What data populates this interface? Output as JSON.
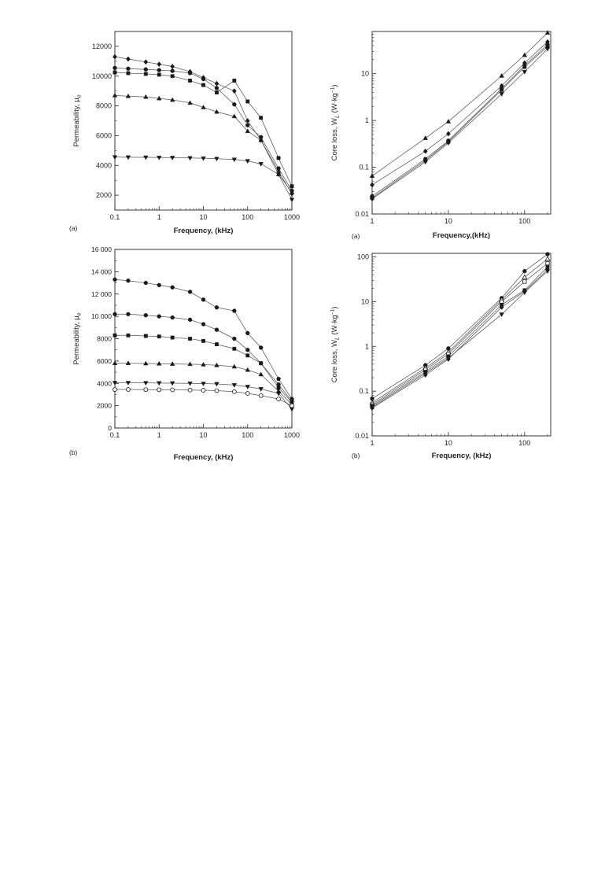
{
  "chart_data": [
    {
      "id": "perm-a",
      "type": "line",
      "panel_label": "(a)",
      "xlabel": "Frequency, (kHz)",
      "ylabel_main": "Permeability, μ",
      "ylabel_sub": "e",
      "xscale": "log",
      "xlim": [
        0.1,
        1000
      ],
      "ylim": [
        1000,
        13000
      ],
      "x_ticks": [
        0.1,
        1,
        10,
        100,
        1000
      ],
      "x_tick_labels": [
        "0.1",
        "1",
        "10",
        "100",
        "1000"
      ],
      "y_ticks": [
        2000,
        4000,
        6000,
        8000,
        10000,
        12000
      ],
      "y_tick_labels": [
        "2000",
        "4000",
        "6000",
        "8000",
        "10000",
        "12000"
      ],
      "grid": false,
      "series": [
        {
          "marker": "diamond",
          "x": [
            0.1,
            0.2,
            0.5,
            1,
            2,
            5,
            10,
            20,
            50,
            100,
            200,
            500,
            1000
          ],
          "y": [
            11300,
            11150,
            10950,
            10800,
            10650,
            10300,
            9900,
            9500,
            9000,
            7000,
            5700,
            3600,
            2100
          ]
        },
        {
          "marker": "circle",
          "x": [
            0.1,
            0.2,
            0.5,
            1,
            2,
            5,
            10,
            20,
            50,
            100,
            200,
            500,
            1000
          ],
          "y": [
            10550,
            10500,
            10450,
            10400,
            10350,
            10200,
            9800,
            9200,
            8100,
            6700,
            5900,
            3800,
            2300
          ]
        },
        {
          "marker": "square",
          "x": [
            0.1,
            0.2,
            0.5,
            1,
            2,
            5,
            10,
            20,
            50,
            100,
            200,
            500,
            1000
          ],
          "y": [
            10250,
            10200,
            10150,
            10100,
            10000,
            9700,
            9400,
            8900,
            9700,
            8300,
            7200,
            4500,
            2600
          ]
        },
        {
          "marker": "triangle",
          "x": [
            0.1,
            0.2,
            0.5,
            1,
            2,
            5,
            10,
            20,
            50,
            100,
            200,
            500,
            1000
          ],
          "y": [
            8700,
            8650,
            8600,
            8500,
            8400,
            8200,
            7900,
            7600,
            7300,
            6300,
            5700,
            3400,
            2200
          ]
        },
        {
          "marker": "triangle-down",
          "x": [
            0.1,
            0.2,
            0.5,
            1,
            2,
            5,
            10,
            20,
            50,
            100,
            200,
            500,
            1000
          ],
          "y": [
            4560,
            4550,
            4540,
            4530,
            4520,
            4500,
            4480,
            4450,
            4400,
            4300,
            4100,
            3400,
            1700
          ]
        }
      ]
    },
    {
      "id": "loss-a",
      "type": "line",
      "panel_label": "(a)",
      "xlabel": "Frequency,(kHz)",
      "ylabel_main": "Core loss, W",
      "ylabel_sub": "L",
      "ylabel_unit": " (W·kg",
      "ylabel_sup": "−1",
      "ylabel_close": ")",
      "xscale": "log",
      "yscale": "log",
      "xlim": [
        1,
        220
      ],
      "ylim": [
        0.01,
        80
      ],
      "x_ticks": [
        1,
        10,
        100
      ],
      "x_tick_labels": [
        "1",
        "10",
        "100"
      ],
      "y_ticks": [
        0.01,
        0.1,
        1,
        10
      ],
      "y_tick_labels": [
        "0.01",
        "0.1",
        "1",
        "10"
      ],
      "grid": false,
      "series": [
        {
          "marker": "triangle",
          "x": [
            1,
            5,
            10,
            50,
            100,
            200
          ],
          "y": [
            0.065,
            0.42,
            0.95,
            9,
            25,
            75
          ]
        },
        {
          "marker": "diamond",
          "x": [
            1,
            5,
            10,
            50,
            100,
            200
          ],
          "y": [
            0.042,
            0.22,
            0.52,
            5.5,
            17,
            48
          ]
        },
        {
          "marker": "circle",
          "x": [
            1,
            5,
            10,
            50,
            100,
            200
          ],
          "y": [
            0.024,
            0.15,
            0.37,
            4.8,
            15,
            42
          ]
        },
        {
          "marker": "square",
          "x": [
            1,
            5,
            10,
            50,
            100,
            200
          ],
          "y": [
            0.022,
            0.14,
            0.35,
            4.5,
            14,
            38
          ]
        },
        {
          "marker": "triangle-down",
          "x": [
            1,
            5,
            10,
            50,
            100,
            200
          ],
          "y": [
            0.021,
            0.13,
            0.33,
            3.7,
            11,
            34
          ]
        }
      ]
    },
    {
      "id": "perm-b",
      "type": "line",
      "panel_label": "(b)",
      "xlabel": "Frequency, (kHz)",
      "ylabel_main": "Permeability, μ",
      "ylabel_sub": "e",
      "xscale": "log",
      "xlim": [
        0.1,
        1000
      ],
      "ylim": [
        0,
        16000
      ],
      "x_ticks": [
        0.1,
        1,
        10,
        100,
        1000
      ],
      "x_tick_labels": [
        "0.1",
        "1",
        "10",
        "100",
        "1000"
      ],
      "y_ticks": [
        0,
        2000,
        4000,
        6000,
        8000,
        10000,
        12000,
        14000,
        16000
      ],
      "y_tick_labels": [
        "0",
        "2000",
        "4000",
        "6000",
        "8000",
        "10 000",
        "12 000",
        "14 000",
        "16 000"
      ],
      "grid": false,
      "series": [
        {
          "marker": "circle",
          "x": [
            0.1,
            0.2,
            0.5,
            1,
            2,
            5,
            10,
            20,
            50,
            100,
            200,
            500,
            1000
          ],
          "y": [
            13300,
            13200,
            13000,
            12800,
            12600,
            12200,
            11500,
            10800,
            10500,
            8500,
            7200,
            4400,
            2600
          ]
        },
        {
          "marker": "circle",
          "x": [
            0.1,
            0.2,
            0.5,
            1,
            2,
            5,
            10,
            20,
            50,
            100,
            200,
            500,
            1000
          ],
          "y": [
            10200,
            10200,
            10100,
            10000,
            9900,
            9700,
            9300,
            8800,
            8000,
            7000,
            5800,
            3900,
            2400
          ]
        },
        {
          "marker": "square",
          "x": [
            0.1,
            0.2,
            0.5,
            1,
            2,
            5,
            10,
            20,
            50,
            100,
            200,
            500,
            1000
          ],
          "y": [
            8300,
            8300,
            8250,
            8200,
            8100,
            8000,
            7800,
            7500,
            7100,
            6500,
            5800,
            3600,
            2300
          ]
        },
        {
          "marker": "triangle",
          "x": [
            0.1,
            0.2,
            0.5,
            1,
            2,
            5,
            10,
            20,
            50,
            100,
            200,
            500,
            1000
          ],
          "y": [
            5800,
            5800,
            5780,
            5760,
            5740,
            5720,
            5680,
            5620,
            5500,
            5200,
            4800,
            3300,
            2100
          ]
        },
        {
          "marker": "triangle-down",
          "x": [
            0.1,
            0.2,
            0.5,
            1,
            2,
            5,
            10,
            20,
            50,
            100,
            200,
            500,
            1000
          ],
          "y": [
            4050,
            4050,
            4040,
            4030,
            4020,
            4000,
            3980,
            3950,
            3850,
            3700,
            3500,
            3100,
            1700
          ]
        },
        {
          "marker": "circle-open",
          "x": [
            0.1,
            0.2,
            0.5,
            1,
            2,
            5,
            10,
            20,
            50,
            100,
            200,
            500,
            1000
          ],
          "y": [
            3450,
            3450,
            3440,
            3430,
            3420,
            3400,
            3380,
            3350,
            3250,
            3100,
            2900,
            2600,
            2000
          ]
        }
      ]
    },
    {
      "id": "loss-b",
      "type": "line",
      "panel_label": "(b)",
      "xlabel": "Frequency, (kHz)",
      "ylabel_main": "Core loss, W",
      "ylabel_sub": "L",
      "ylabel_unit": " (W·kg",
      "ylabel_sup": "−1",
      "ylabel_close": ")",
      "xscale": "log",
      "yscale": "log",
      "xlim": [
        1,
        220
      ],
      "ylim": [
        0.01,
        120
      ],
      "x_ticks": [
        1,
        10,
        100
      ],
      "x_tick_labels": [
        "1",
        "10",
        "100"
      ],
      "y_ticks": [
        0.01,
        0.1,
        1,
        10,
        100
      ],
      "y_tick_labels": [
        "0.01",
        "0.1",
        "1",
        "10",
        "100"
      ],
      "grid": false,
      "series": [
        {
          "marker": "circle",
          "x": [
            1,
            5,
            10,
            50,
            100,
            200
          ],
          "y": [
            0.068,
            0.38,
            0.9,
            12,
            48,
            115
          ]
        },
        {
          "marker": "triangle-open",
          "x": [
            1,
            5,
            10,
            50,
            100,
            200
          ],
          "y": [
            0.055,
            0.33,
            0.75,
            11,
            35,
            90
          ]
        },
        {
          "marker": "square-open",
          "x": [
            1,
            5,
            10,
            50,
            100,
            200
          ],
          "y": [
            0.05,
            0.3,
            0.68,
            10,
            28,
            72
          ]
        },
        {
          "marker": "square",
          "x": [
            1,
            5,
            10,
            50,
            100,
            200
          ],
          "y": [
            0.047,
            0.27,
            0.6,
            8.5,
            18,
            60
          ]
        },
        {
          "marker": "triangle-down",
          "x": [
            1,
            5,
            10,
            50,
            100,
            200
          ],
          "y": [
            0.044,
            0.25,
            0.55,
            5.2,
            16,
            48
          ]
        },
        {
          "marker": "diamond",
          "x": [
            1,
            5,
            10,
            50,
            100,
            200
          ],
          "y": [
            0.042,
            0.23,
            0.52,
            7.5,
            17,
            52
          ]
        }
      ]
    }
  ]
}
